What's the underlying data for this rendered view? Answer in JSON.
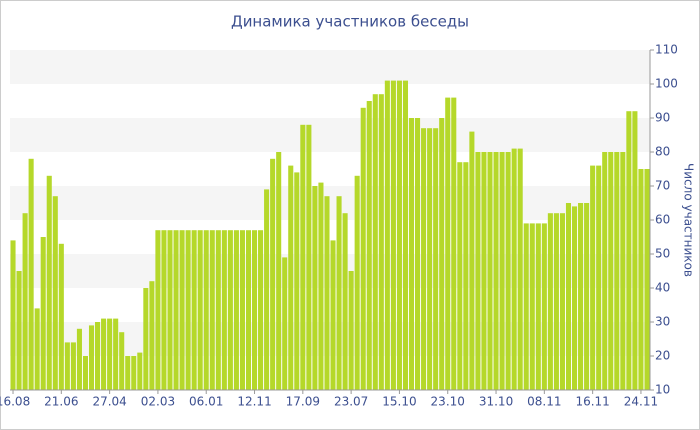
{
  "chart_data": {
    "type": "bar",
    "title": "Динамика участников беседы",
    "y_axis_label": "Число участников",
    "categories": [
      "16.08",
      null,
      null,
      null,
      null,
      null,
      null,
      null,
      "21.06",
      null,
      null,
      null,
      null,
      null,
      null,
      null,
      "27.04",
      null,
      null,
      null,
      null,
      null,
      null,
      null,
      "02.03",
      null,
      null,
      null,
      null,
      null,
      null,
      null,
      "06.01",
      null,
      null,
      null,
      null,
      null,
      null,
      null,
      "12.11",
      null,
      null,
      null,
      null,
      null,
      null,
      null,
      "17.09",
      null,
      null,
      null,
      null,
      null,
      null,
      null,
      "23.07",
      null,
      null,
      null,
      null,
      null,
      null,
      null,
      "15.10",
      null,
      null,
      null,
      null,
      null,
      null,
      null,
      "23.10",
      null,
      null,
      null,
      null,
      null,
      null,
      null,
      "31.10",
      null,
      null,
      null,
      null,
      null,
      null,
      null,
      "08.11",
      null,
      null,
      null,
      null,
      null,
      null,
      null,
      "16.11",
      null,
      null,
      null,
      null,
      null,
      null,
      null,
      "24.11",
      null
    ],
    "values": [
      54,
      45,
      62,
      78,
      34,
      55,
      73,
      67,
      53,
      24,
      24,
      28,
      20,
      29,
      30,
      31,
      31,
      31,
      27,
      20,
      20,
      21,
      40,
      42,
      57,
      57,
      57,
      57,
      57,
      57,
      57,
      57,
      57,
      57,
      57,
      57,
      57,
      57,
      57,
      57,
      57,
      57,
      69,
      78,
      80,
      49,
      76,
      74,
      88,
      88,
      70,
      71,
      67,
      54,
      67,
      62,
      45,
      73,
      93,
      95,
      97,
      97,
      101,
      101,
      101,
      101,
      90,
      90,
      87,
      87,
      87,
      90,
      96,
      96,
      77,
      77,
      86,
      80,
      80,
      80,
      80,
      80,
      80,
      81,
      81,
      59,
      59,
      59,
      59,
      62,
      62,
      62,
      65,
      64,
      65,
      65,
      76,
      76,
      80,
      80,
      80,
      80,
      92,
      92,
      75,
      75
    ],
    "color": "#b5d82a",
    "ylim": [
      10,
      110
    ],
    "yticks": [
      10,
      20,
      30,
      40,
      50,
      60,
      70,
      80,
      90,
      100,
      110
    ],
    "grid": true
  }
}
